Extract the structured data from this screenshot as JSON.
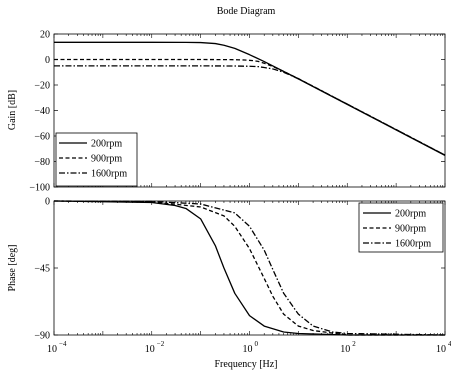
{
  "chart_data": [
    {
      "type": "line",
      "title": "Bode Diagram",
      "xlabel": "",
      "ylabel": "Gain [dB]",
      "xscale": "log",
      "xlim": [
        0.0001,
        10000
      ],
      "ylim": [
        -100,
        20
      ],
      "xticks": [
        0.0001,
        0.01,
        1,
        100,
        10000
      ],
      "yticks": [
        20,
        0,
        -20,
        -40,
        -60,
        -80,
        -100
      ],
      "yticklabels": [
        "20",
        "0",
        "−20",
        "−40",
        "−60",
        "−80",
        "−100"
      ],
      "legend": "bottom-left",
      "series": [
        {
          "name": "200rpm",
          "style": "solid",
          "x": [
            0.0001,
            0.01,
            0.05,
            0.1,
            0.2,
            0.3,
            0.5,
            1,
            2,
            10,
            100,
            1000,
            10000
          ],
          "values": [
            13.5,
            13.5,
            13.45,
            13.3,
            12.5,
            11.2,
            8.7,
            3.8,
            -1.6,
            -15.2,
            -35.2,
            -55.2,
            -75.2
          ]
        },
        {
          "name": "900rpm",
          "style": "dashed",
          "x": [
            0.0001,
            0.01,
            0.1,
            0.5,
            0.8,
            1.2,
            1.5,
            2,
            3,
            5,
            10,
            100,
            1000,
            10000
          ],
          "values": [
            0,
            0,
            0,
            -0.15,
            -0.4,
            -0.9,
            -1.5,
            -2.9,
            -5.5,
            -9.3,
            -15.0,
            -35.0,
            -55.0,
            -75.0
          ]
        },
        {
          "name": "1600rpm",
          "style": "dashdot",
          "x": [
            0.0001,
            0.01,
            0.1,
            0.5,
            1,
            1.5,
            2,
            3,
            5,
            10,
            100,
            1000,
            10000
          ],
          "values": [
            -5,
            -5,
            -5,
            -5.1,
            -5.3,
            -5.6,
            -6.3,
            -7.4,
            -10.0,
            -15.1,
            -35.0,
            -55.0,
            -75.0
          ]
        }
      ]
    },
    {
      "type": "line",
      "title": "",
      "xlabel": "Frequency  [Hz]",
      "ylabel": "Phase [deg]",
      "xscale": "log",
      "xlim": [
        0.0001,
        10000
      ],
      "ylim": [
        -90,
        0
      ],
      "xticks": [
        0.0001,
        0.01,
        1,
        100,
        10000
      ],
      "yticks": [
        0,
        -45,
        -90
      ],
      "yticklabels": [
        "0",
        "−45",
        "−90"
      ],
      "legend": "top-right",
      "series": [
        {
          "name": "200rpm",
          "style": "solid",
          "x": [
            0.0001,
            0.01,
            0.03,
            0.05,
            0.1,
            0.2,
            0.3,
            0.5,
            1,
            2,
            5,
            10,
            100,
            10000
          ],
          "values": [
            0,
            -1,
            -3,
            -5,
            -12,
            -30,
            -45,
            -62,
            -77,
            -84,
            -88,
            -89,
            -90,
            -90
          ]
        },
        {
          "name": "900rpm",
          "style": "dashed",
          "x": [
            0.0001,
            0.01,
            0.1,
            0.3,
            0.5,
            1,
            2,
            3,
            5,
            10,
            20,
            100,
            10000
          ],
          "values": [
            0,
            -0.5,
            -4,
            -10,
            -17,
            -32,
            -52,
            -64,
            -76,
            -84,
            -87,
            -90,
            -90
          ]
        },
        {
          "name": "1600rpm",
          "style": "dashdot",
          "x": [
            0.0001,
            0.01,
            0.1,
            0.5,
            1,
            2,
            3,
            5,
            10,
            20,
            50,
            100,
            10000
          ],
          "values": [
            0,
            -0.3,
            -2,
            -8,
            -17,
            -33,
            -46,
            -62,
            -76,
            -84,
            -88,
            -89,
            -90
          ]
        }
      ]
    }
  ],
  "xticklabels": [
    {
      "base": "10",
      "exp": "−4"
    },
    {
      "base": "10",
      "exp": "−2"
    },
    {
      "base": "10",
      "exp": "0"
    },
    {
      "base": "10",
      "exp": "2"
    },
    {
      "base": "10",
      "exp": "4"
    }
  ]
}
